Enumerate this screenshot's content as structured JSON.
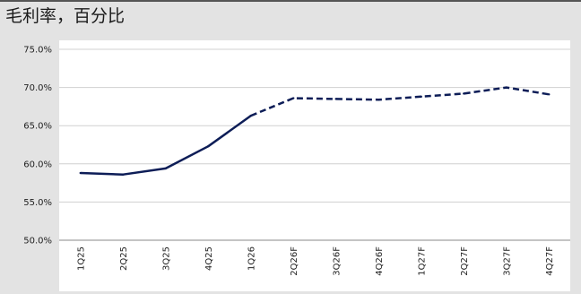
{
  "chart_data": {
    "type": "line",
    "title": "毛利率，百分比",
    "categories": [
      "1Q25",
      "2Q25",
      "3Q25",
      "4Q25",
      "1Q26",
      "2Q26F",
      "3Q26F",
      "4Q26F",
      "1Q27F",
      "2Q27F",
      "3Q27F",
      "4Q27F"
    ],
    "series": [
      {
        "values": [
          58.8,
          58.6,
          59.4,
          62.3,
          66.3,
          68.6,
          68.5,
          68.4,
          68.8,
          69.2,
          70.0,
          69.1
        ],
        "color": "#0d1d57",
        "solid_through_index": 4
      }
    ],
    "yticks": [
      "50.0%",
      "55.0%",
      "60.0%",
      "65.0%",
      "70.0%",
      "75.0%"
    ],
    "ylim": [
      50,
      75
    ],
    "grid": true,
    "legend": "none"
  }
}
